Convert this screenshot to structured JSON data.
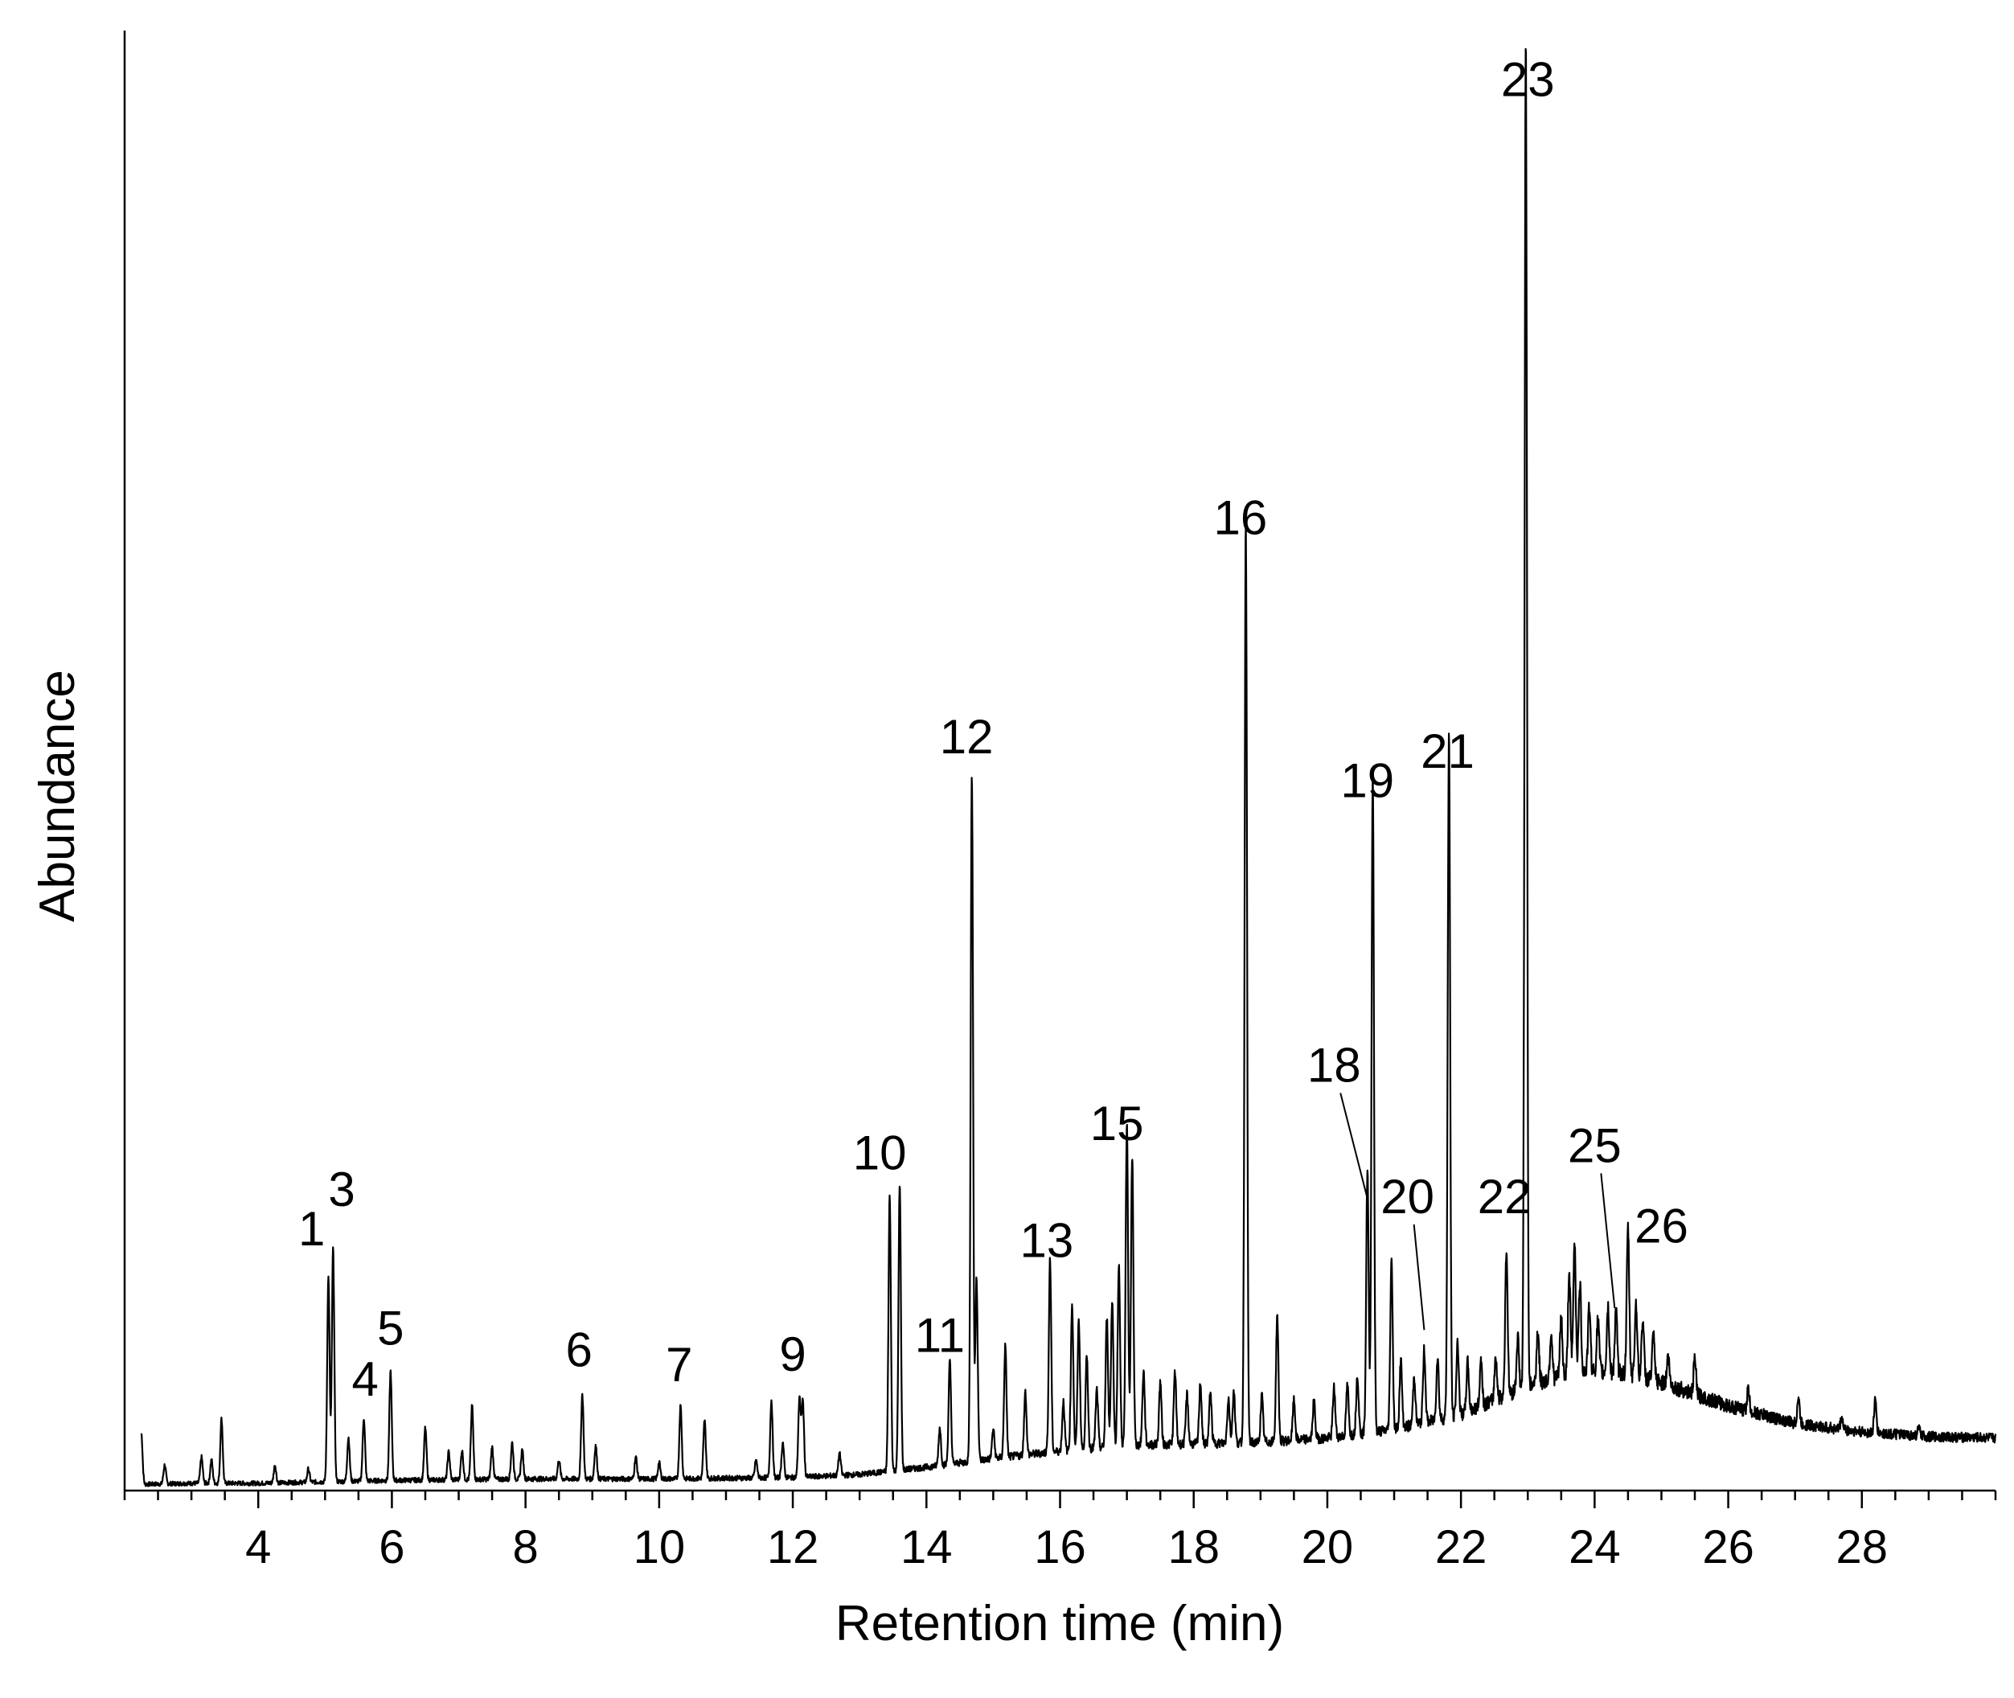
{
  "chart_data": {
    "type": "line",
    "title": "",
    "xlabel": "Retention time (min)",
    "ylabel": "Abundance",
    "xlim": [
      2.0,
      30.0
    ],
    "ylim": [
      0,
      100
    ],
    "x_ticks": [
      4,
      6,
      8,
      10,
      12,
      14,
      16,
      18,
      20,
      22,
      24,
      26,
      28
    ],
    "x_minor_step": 0.5,
    "grid": false,
    "legend": "none",
    "baseline": [
      [
        2.0,
        0.4
      ],
      [
        3.0,
        0.5
      ],
      [
        4.0,
        0.5
      ],
      [
        6.0,
        0.7
      ],
      [
        8.0,
        0.8
      ],
      [
        10.0,
        0.8
      ],
      [
        12.0,
        0.9
      ],
      [
        13.0,
        1.1
      ],
      [
        14.0,
        1.6
      ],
      [
        15.0,
        2.2
      ],
      [
        16.0,
        2.7
      ],
      [
        17.0,
        3.1
      ],
      [
        18.0,
        3.2
      ],
      [
        19.0,
        3.3
      ],
      [
        20.0,
        3.6
      ],
      [
        21.0,
        4.2
      ],
      [
        22.0,
        5.2
      ],
      [
        23.0,
        7.2
      ],
      [
        23.8,
        8.2
      ],
      [
        24.5,
        8.0
      ],
      [
        25.0,
        7.4
      ],
      [
        26.0,
        5.8
      ],
      [
        27.0,
        4.6
      ],
      [
        28.0,
        4.0
      ],
      [
        29.0,
        3.7
      ],
      [
        30.0,
        3.6
      ]
    ],
    "peaks": [
      {
        "x": 2.25,
        "y": 3.5
      },
      {
        "x": 2.6,
        "y": 1.3
      },
      {
        "x": 3.15,
        "y": 1.8
      },
      {
        "x": 3.3,
        "y": 1.6
      },
      {
        "x": 3.45,
        "y": 4.4
      },
      {
        "x": 4.25,
        "y": 1.2
      },
      {
        "x": 4.75,
        "y": 0.9
      },
      {
        "x": 5.05,
        "y": 14.0
      },
      {
        "x": 5.12,
        "y": 16.0
      },
      {
        "x": 5.35,
        "y": 3.0
      },
      {
        "x": 5.58,
        "y": 4.3
      },
      {
        "x": 5.98,
        "y": 7.5
      },
      {
        "x": 6.5,
        "y": 3.6
      },
      {
        "x": 6.85,
        "y": 1.9
      },
      {
        "x": 7.05,
        "y": 2.0
      },
      {
        "x": 7.2,
        "y": 5.1
      },
      {
        "x": 7.5,
        "y": 2.2
      },
      {
        "x": 7.8,
        "y": 2.5
      },
      {
        "x": 7.95,
        "y": 2.0
      },
      {
        "x": 8.5,
        "y": 1.3
      },
      {
        "x": 8.85,
        "y": 5.8
      },
      {
        "x": 9.05,
        "y": 2.3
      },
      {
        "x": 9.65,
        "y": 1.5
      },
      {
        "x": 10.0,
        "y": 1.1
      },
      {
        "x": 10.32,
        "y": 5.0
      },
      {
        "x": 10.68,
        "y": 4.0
      },
      {
        "x": 11.45,
        "y": 1.2
      },
      {
        "x": 11.68,
        "y": 5.3
      },
      {
        "x": 11.85,
        "y": 2.4
      },
      {
        "x": 12.1,
        "y": 5.5
      },
      {
        "x": 12.15,
        "y": 5.2
      },
      {
        "x": 12.7,
        "y": 1.5
      },
      {
        "x": 13.45,
        "y": 19.0
      },
      {
        "x": 13.6,
        "y": 19.5
      },
      {
        "x": 14.2,
        "y": 2.6
      },
      {
        "x": 14.35,
        "y": 7.0
      },
      {
        "x": 14.68,
        "y": 47.0
      },
      {
        "x": 14.75,
        "y": 12.5
      },
      {
        "x": 15.0,
        "y": 2.0
      },
      {
        "x": 15.18,
        "y": 7.6
      },
      {
        "x": 15.48,
        "y": 4.3
      },
      {
        "x": 15.85,
        "y": 13.2
      },
      {
        "x": 16.05,
        "y": 3.4
      },
      {
        "x": 16.18,
        "y": 10.0
      },
      {
        "x": 16.28,
        "y": 8.8
      },
      {
        "x": 16.4,
        "y": 6.3
      },
      {
        "x": 16.55,
        "y": 4.0
      },
      {
        "x": 16.7,
        "y": 8.8
      },
      {
        "x": 16.78,
        "y": 10.0
      },
      {
        "x": 16.88,
        "y": 12.5
      },
      {
        "x": 17.0,
        "y": 22.0
      },
      {
        "x": 17.08,
        "y": 19.8
      },
      {
        "x": 17.25,
        "y": 5.0
      },
      {
        "x": 17.5,
        "y": 4.3
      },
      {
        "x": 17.72,
        "y": 5.0
      },
      {
        "x": 17.9,
        "y": 3.4
      },
      {
        "x": 18.1,
        "y": 4.2
      },
      {
        "x": 18.25,
        "y": 3.5
      },
      {
        "x": 18.52,
        "y": 3.1
      },
      {
        "x": 18.6,
        "y": 3.6
      },
      {
        "x": 18.78,
        "y": 63.0
      },
      {
        "x": 19.02,
        "y": 3.2
      },
      {
        "x": 19.25,
        "y": 8.6
      },
      {
        "x": 19.5,
        "y": 2.7
      },
      {
        "x": 19.8,
        "y": 2.6
      },
      {
        "x": 20.1,
        "y": 3.4
      },
      {
        "x": 20.3,
        "y": 3.4
      },
      {
        "x": 20.45,
        "y": 4.1
      },
      {
        "x": 20.6,
        "y": 18.0
      },
      {
        "x": 20.68,
        "y": 45.0
      },
      {
        "x": 20.96,
        "y": 11.7
      },
      {
        "x": 21.1,
        "y": 4.6
      },
      {
        "x": 21.3,
        "y": 3.3
      },
      {
        "x": 21.45,
        "y": 5.0
      },
      {
        "x": 21.65,
        "y": 4.3
      },
      {
        "x": 21.82,
        "y": 47.0
      },
      {
        "x": 21.95,
        "y": 5.0
      },
      {
        "x": 22.1,
        "y": 3.4
      },
      {
        "x": 22.3,
        "y": 3.2
      },
      {
        "x": 22.52,
        "y": 3.0
      },
      {
        "x": 22.68,
        "y": 10.0
      },
      {
        "x": 22.85,
        "y": 3.6
      },
      {
        "x": 22.97,
        "y": 92.5
      },
      {
        "x": 23.15,
        "y": 3.6
      },
      {
        "x": 23.35,
        "y": 3.2
      },
      {
        "x": 23.5,
        "y": 4.0
      },
      {
        "x": 23.62,
        "y": 7.0
      },
      {
        "x": 23.7,
        "y": 9.0
      },
      {
        "x": 23.78,
        "y": 6.0
      },
      {
        "x": 23.92,
        "y": 4.5
      },
      {
        "x": 24.05,
        "y": 3.6
      },
      {
        "x": 24.2,
        "y": 4.5
      },
      {
        "x": 24.32,
        "y": 4.2
      },
      {
        "x": 24.5,
        "y": 10.0
      },
      {
        "x": 24.62,
        "y": 5.0
      },
      {
        "x": 24.72,
        "y": 4.0
      },
      {
        "x": 24.88,
        "y": 3.0
      },
      {
        "x": 25.1,
        "y": 2.0
      },
      {
        "x": 25.5,
        "y": 2.4
      },
      {
        "x": 26.3,
        "y": 1.5
      },
      {
        "x": 27.05,
        "y": 1.8
      },
      {
        "x": 27.7,
        "y": 0.8
      },
      {
        "x": 28.2,
        "y": 2.2
      },
      {
        "x": 28.85,
        "y": 0.5
      }
    ],
    "annotations": [
      {
        "label": "1",
        "x": 4.8,
        "y": 16.8
      },
      {
        "label": "3",
        "x": 5.25,
        "y": 19.5
      },
      {
        "label": "4",
        "x": 5.6,
        "y": 6.5
      },
      {
        "label": "5",
        "x": 5.98,
        "y": 10.0
      },
      {
        "label": "6",
        "x": 8.8,
        "y": 8.5
      },
      {
        "label": "7",
        "x": 10.3,
        "y": 7.5
      },
      {
        "label": "9",
        "x": 12.0,
        "y": 8.2
      },
      {
        "label": "10",
        "x": 13.3,
        "y": 22.0
      },
      {
        "label": "11",
        "x": 14.2,
        "y": 9.5
      },
      {
        "label": "12",
        "x": 14.6,
        "y": 50.5
      },
      {
        "label": "13",
        "x": 15.8,
        "y": 16.0
      },
      {
        "label": "15",
        "x": 16.85,
        "y": 24.0
      },
      {
        "label": "16",
        "x": 18.7,
        "y": 65.5
      },
      {
        "label": "18",
        "x": 20.1,
        "y": 28.0,
        "leader_to": [
          20.6,
          20.0
        ]
      },
      {
        "label": "19",
        "x": 20.6,
        "y": 47.5
      },
      {
        "label": "20",
        "x": 21.2,
        "y": 19.0,
        "leader_to": [
          21.45,
          11.0
        ]
      },
      {
        "label": "21",
        "x": 21.8,
        "y": 49.5
      },
      {
        "label": "22",
        "x": 22.65,
        "y": 19.0
      },
      {
        "label": "23",
        "x": 23.0,
        "y": 95.5
      },
      {
        "label": "25",
        "x": 24.0,
        "y": 22.5,
        "leader_to": [
          24.3,
          12.5
        ]
      },
      {
        "label": "26",
        "x": 25.0,
        "y": 17.0
      }
    ]
  }
}
